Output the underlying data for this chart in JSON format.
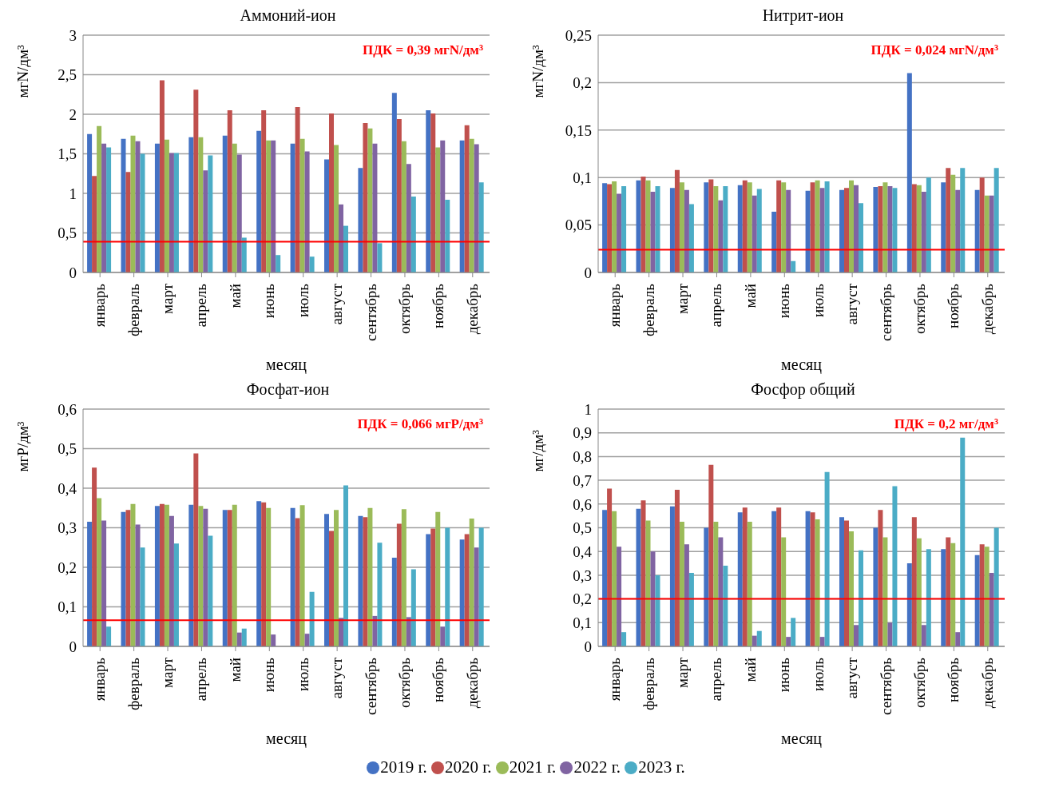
{
  "chart_data": [
    {
      "type": "bar",
      "title": "Аммоний-ион",
      "xlabel": "месяц",
      "ylabel": "мгN/дм³",
      "categories": [
        "январь",
        "февраль",
        "март",
        "апрель",
        "май",
        "июнь",
        "июль",
        "август",
        "сентябрь",
        "октябрь",
        "ноябрь",
        "декабрь"
      ],
      "series": [
        {
          "name": "2019 г.",
          "color": "#4472c4",
          "values": [
            1.75,
            1.69,
            1.63,
            1.71,
            1.73,
            1.79,
            1.63,
            1.43,
            1.32,
            2.27,
            2.05,
            1.67
          ]
        },
        {
          "name": "2020 г.",
          "color": "#c0504d",
          "values": [
            1.22,
            1.27,
            2.43,
            2.31,
            2.05,
            2.05,
            2.09,
            2.01,
            1.89,
            1.94,
            2.01,
            1.86
          ]
        },
        {
          "name": "2021 г.",
          "color": "#9bbb59",
          "values": [
            1.85,
            1.73,
            1.68,
            1.71,
            1.63,
            1.67,
            1.69,
            1.61,
            1.82,
            1.66,
            1.58,
            1.69
          ]
        },
        {
          "name": "2022 г.",
          "color": "#8064a2",
          "values": [
            1.63,
            1.66,
            1.51,
            1.29,
            1.49,
            1.67,
            1.53,
            0.86,
            1.63,
            1.37,
            1.67,
            1.62
          ]
        },
        {
          "name": "2023 г.",
          "color": "#4bacc6",
          "values": [
            1.58,
            1.5,
            1.51,
            1.48,
            0.44,
            0.22,
            0.2,
            0.59,
            0.37,
            0.96,
            0.92,
            1.14
          ]
        }
      ],
      "ylim": [
        0,
        3
      ],
      "yticks": [
        0,
        {
          "value": 0.5,
          "label": "0,5"
        },
        1,
        {
          "value": 1.5,
          "label": "1,5"
        },
        2,
        {
          "value": 2.5,
          "label": "2,5"
        },
        3
      ],
      "grid": "y",
      "legend": "bottom",
      "ref_lines": [
        {
          "axis": "y",
          "value": 0.39,
          "label": "ПДК = 0,39 мгN/дм³",
          "color": "#ff0000"
        }
      ]
    },
    {
      "type": "bar",
      "title": "Нитрит-ион",
      "xlabel": "месяц",
      "ylabel": "мгN/дм³",
      "categories": [
        "январь",
        "февраль",
        "март",
        "апрель",
        "май",
        "июнь",
        "июль",
        "август",
        "сентябрь",
        "октябрь",
        "ноябрь",
        "декабрь"
      ],
      "series": [
        {
          "color": "#4472c4",
          "values": [
            0.094,
            0.097,
            0.089,
            0.095,
            0.092,
            0.064,
            0.086,
            0.087,
            0.09,
            0.21,
            0.095,
            0.087
          ]
        },
        {
          "color": "#c0504d",
          "values": [
            0.093,
            0.101,
            0.108,
            0.098,
            0.097,
            0.097,
            0.095,
            0.089,
            0.091,
            0.093,
            0.11,
            0.1
          ]
        },
        {
          "color": "#9bbb59",
          "values": [
            0.096,
            0.097,
            0.095,
            0.091,
            0.095,
            0.095,
            0.097,
            0.097,
            0.095,
            0.092,
            0.103,
            0.081
          ]
        },
        {
          "color": "#8064a2",
          "values": [
            0.083,
            0.085,
            0.087,
            0.076,
            0.081,
            0.087,
            0.089,
            0.092,
            0.091,
            0.085,
            0.087,
            0.081
          ]
        },
        {
          "color": "#4bacc6",
          "values": [
            0.091,
            0.091,
            0.072,
            0.091,
            0.088,
            0.012,
            0.096,
            0.073,
            0.089,
            0.1,
            0.11,
            0.11
          ]
        }
      ],
      "ylim": [
        0,
        0.25
      ],
      "yticks": [
        0,
        {
          "value": 0.05,
          "label": "0,05"
        },
        {
          "value": 0.1,
          "label": "0,1"
        },
        {
          "value": 0.15,
          "label": "0,15"
        },
        {
          "value": 0.2,
          "label": "0,2"
        },
        {
          "value": 0.25,
          "label": "0,25"
        }
      ],
      "grid": "y",
      "ref_lines": [
        {
          "axis": "y",
          "value": 0.024,
          "label": "ПДК = 0,024 мгN/дм³",
          "color": "#ff0000"
        }
      ]
    },
    {
      "type": "bar",
      "title": "Фосфат-ион",
      "xlabel": "месяц",
      "ylabel": "мгР/дм³",
      "categories": [
        "январь",
        "февраль",
        "март",
        "апрель",
        "май",
        "июнь",
        "июль",
        "август",
        "сентябрь",
        "октябрь",
        "ноябрь",
        "декабрь"
      ],
      "series": [
        {
          "color": "#4472c4",
          "values": [
            0.315,
            0.34,
            0.355,
            0.358,
            0.345,
            0.367,
            0.35,
            0.335,
            0.33,
            0.224,
            0.284,
            0.27
          ]
        },
        {
          "color": "#c0504d",
          "values": [
            0.452,
            0.345,
            0.36,
            0.488,
            0.345,
            0.364,
            0.324,
            0.292,
            0.327,
            0.31,
            0.298,
            0.284
          ]
        },
        {
          "color": "#9bbb59",
          "values": [
            0.375,
            0.36,
            0.358,
            0.355,
            0.358,
            0.35,
            0.357,
            0.345,
            0.35,
            0.347,
            0.34,
            0.323
          ]
        },
        {
          "color": "#8064a2",
          "values": [
            0.318,
            0.308,
            0.33,
            0.348,
            0.035,
            0.03,
            0.032,
            0.072,
            0.077,
            0.074,
            0.05,
            0.25
          ]
        },
        {
          "color": "#4bacc6",
          "values": [
            0.05,
            0.25,
            0.26,
            0.28,
            0.045,
            null,
            0.138,
            0.407,
            0.262,
            0.195,
            0.3,
            0.3
          ]
        }
      ],
      "ylim": [
        0,
        0.6
      ],
      "yticks": [
        0,
        {
          "value": 0.1,
          "label": "0,1"
        },
        {
          "value": 0.2,
          "label": "0,2"
        },
        {
          "value": 0.3,
          "label": "0,3"
        },
        {
          "value": 0.4,
          "label": "0,4"
        },
        {
          "value": 0.5,
          "label": "0,5"
        },
        {
          "value": 0.6,
          "label": "0,6"
        }
      ],
      "grid": "y",
      "ref_lines": [
        {
          "axis": "y",
          "value": 0.066,
          "label": "ПДК = 0,066 мгР/дм³",
          "color": "#ff0000"
        }
      ]
    },
    {
      "type": "bar",
      "title": "Фосфор общий",
      "xlabel": "месяц",
      "ylabel": "мг/дм³",
      "categories": [
        "январь",
        "февраль",
        "март",
        "апрель",
        "май",
        "июнь",
        "июль",
        "август",
        "сентябрь",
        "октябрь",
        "ноябрь",
        "декабрь"
      ],
      "series": [
        {
          "color": "#4472c4",
          "values": [
            0.575,
            0.58,
            0.59,
            0.5,
            0.565,
            0.57,
            0.57,
            0.545,
            0.5,
            0.35,
            0.41,
            0.385
          ]
        },
        {
          "color": "#c0504d",
          "values": [
            0.665,
            0.615,
            0.66,
            0.765,
            0.585,
            0.585,
            0.565,
            0.53,
            0.575,
            0.545,
            0.46,
            0.43
          ]
        },
        {
          "color": "#9bbb59",
          "values": [
            0.57,
            0.53,
            0.525,
            0.525,
            0.525,
            0.46,
            0.535,
            0.485,
            0.46,
            0.455,
            0.435,
            0.42
          ]
        },
        {
          "color": "#8064a2",
          "values": [
            0.42,
            0.4,
            0.43,
            0.46,
            0.045,
            0.04,
            0.04,
            0.09,
            0.1,
            0.09,
            0.06,
            0.31
          ]
        },
        {
          "color": "#4bacc6",
          "values": [
            0.06,
            0.3,
            0.31,
            0.34,
            0.065,
            0.12,
            0.735,
            0.405,
            0.675,
            0.41,
            0.88,
            0.5
          ]
        }
      ],
      "ylim": [
        0,
        1
      ],
      "yticks": [
        0,
        {
          "value": 0.1,
          "label": "0,1"
        },
        {
          "value": 0.2,
          "label": "0,2"
        },
        {
          "value": 0.3,
          "label": "0,3"
        },
        {
          "value": 0.4,
          "label": "0,4"
        },
        {
          "value": 0.5,
          "label": "0,5"
        },
        {
          "value": 0.6,
          "label": "0,6"
        },
        {
          "value": 0.7,
          "label": "0,7"
        },
        {
          "value": 0.8,
          "label": "0,8"
        },
        {
          "value": 0.9,
          "label": "0,9"
        },
        1
      ],
      "grid": "y",
      "ref_lines": [
        {
          "axis": "y",
          "value": 0.2,
          "label": "ПДК = 0,2 мг/дм³",
          "color": "#ff0000"
        }
      ]
    }
  ]
}
